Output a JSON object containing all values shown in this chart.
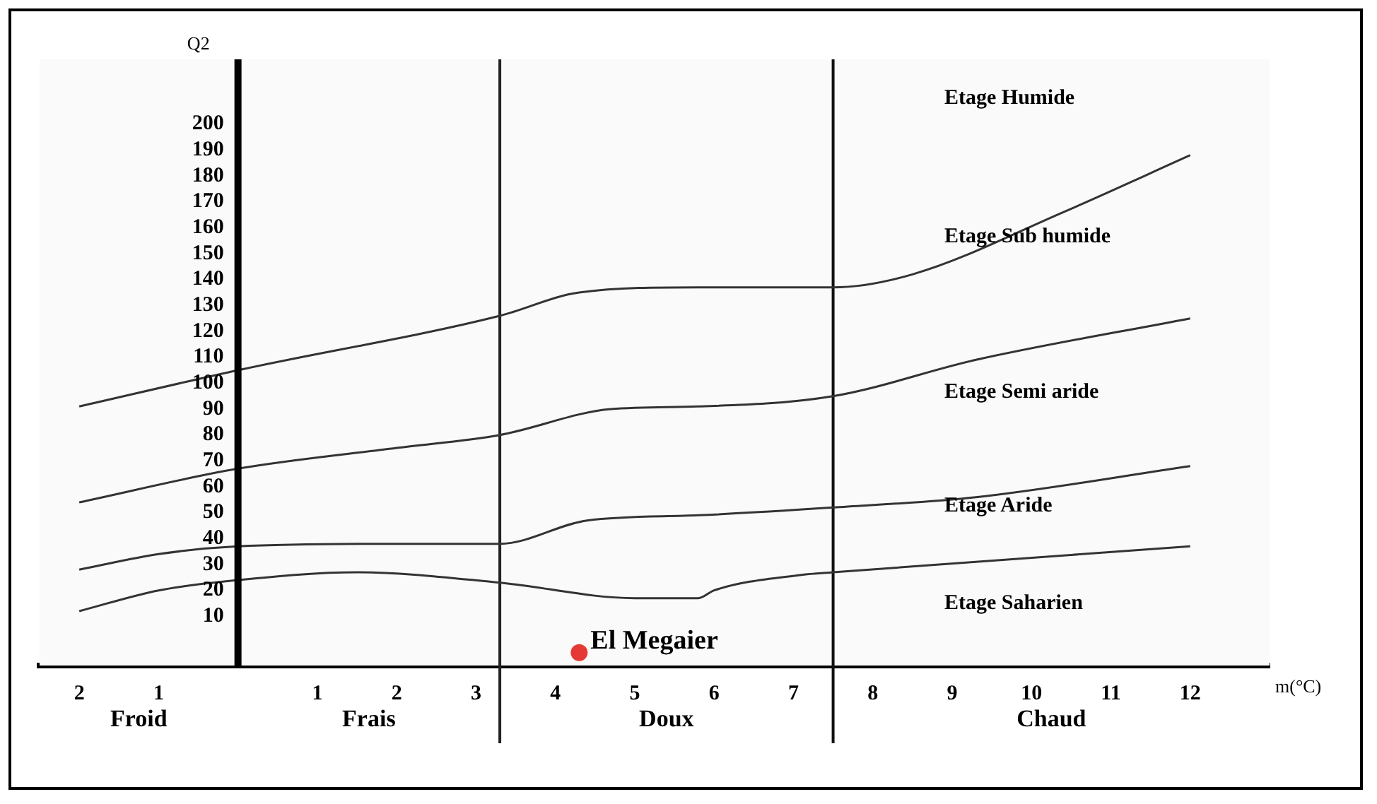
{
  "chart_data": {
    "type": "line",
    "xlabel": "m(°C)",
    "ylabel": "Q2",
    "xlim": [
      -2.5,
      13
    ],
    "ylim": [
      -9,
      225
    ],
    "xticks": [
      {
        "value": -2,
        "label": "2"
      },
      {
        "value": -1,
        "label": "1"
      },
      1,
      2,
      3,
      4,
      5,
      6,
      7,
      8,
      9,
      10,
      11,
      12
    ],
    "yticks": [
      10,
      20,
      30,
      40,
      50,
      60,
      70,
      80,
      90,
      100,
      110,
      120,
      130,
      140,
      150,
      160,
      170,
      180,
      190,
      200
    ],
    "grid": false,
    "legend": false,
    "line_style": "solid",
    "series": [
      {
        "marker": "none",
        "color": "#333333",
        "x": [
          -2,
          0,
          3.3,
          4.3,
          5.8,
          7.5,
          8.5,
          10.4,
          12
        ],
        "values": [
          91,
          105,
          126,
          135,
          137,
          137,
          142,
          166,
          188
        ]
      },
      {
        "marker": "none",
        "color": "#333333",
        "x": [
          -2,
          0,
          2,
          3.3,
          4.7,
          5.8,
          7.5,
          9.3,
          12
        ],
        "values": [
          54,
          67,
          75,
          80,
          90,
          91,
          95,
          109,
          125
        ]
      },
      {
        "marker": "none",
        "color": "#333333",
        "x": [
          -2,
          -1,
          0,
          2,
          3.3,
          4.4,
          5.8,
          7.5,
          9.3,
          12
        ],
        "values": [
          28,
          34,
          37,
          38,
          38,
          47,
          49,
          52,
          56,
          68
        ]
      },
      {
        "marker": "none",
        "color": "#333333",
        "x": [
          -2,
          -1,
          0,
          1.5,
          3.3,
          5,
          5.8,
          6,
          7.1,
          7.5,
          12
        ],
        "values": [
          12,
          20,
          24,
          27,
          23,
          17,
          17,
          20,
          26,
          27,
          37
        ]
      },
      {
        "type": "scatter",
        "marker": "circle",
        "name": "El Megaier",
        "color": "#e53935",
        "x": [
          4.3
        ],
        "values": [
          -4
        ]
      }
    ],
    "ref_lines": [
      {
        "axis": "x",
        "value": 3.3,
        "color": "#222222"
      },
      {
        "axis": "x",
        "value": 7.5,
        "color": "#111111"
      }
    ],
    "bands": [
      {
        "axis": "x",
        "from": -2.5,
        "to": 0,
        "label": "Froid",
        "color": "#fafafa"
      },
      {
        "axis": "x",
        "from": 0,
        "to": 3.3,
        "label": "Frais",
        "color": "#fafafa"
      },
      {
        "axis": "x",
        "from": 3.3,
        "to": 7.5,
        "label": "Doux",
        "color": "#fafafa"
      },
      {
        "axis": "x",
        "from": 7.5,
        "to": 13,
        "label": "Chaud",
        "color": "#fafafa"
      }
    ],
    "annotations": [
      "Etage Humide",
      "Etage Sub humide",
      "Etage Semi aride",
      "Etage Aride",
      "Etage Saharien"
    ]
  }
}
